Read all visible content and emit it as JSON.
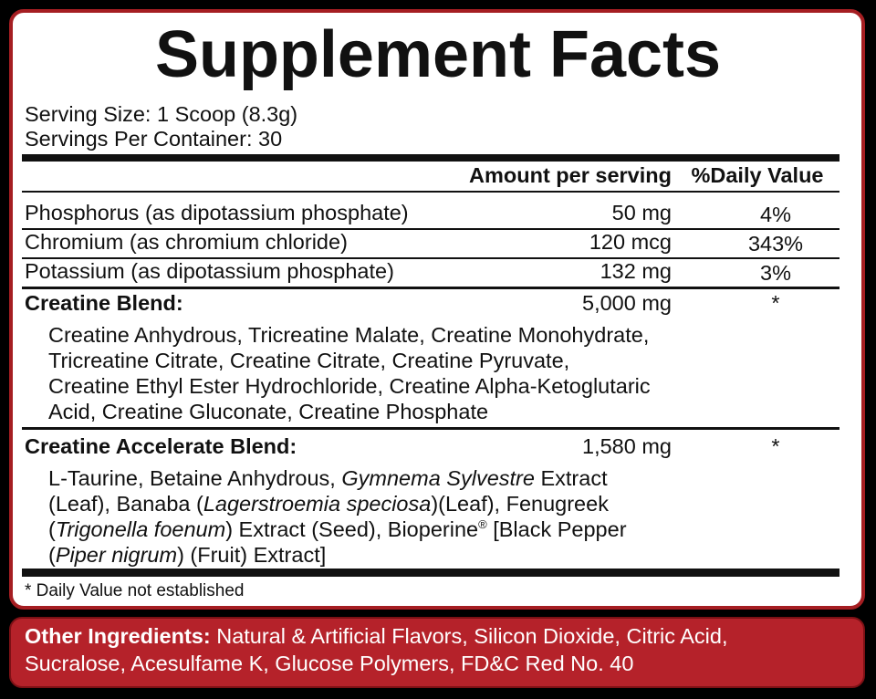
{
  "title": "Supplement Facts",
  "serving": [
    "Serving Size: 1 Scoop (8.3g)",
    "Servings Per Container: 30"
  ],
  "header": {
    "amount": "Amount per serving",
    "daily_value": "%Daily Value"
  },
  "nutrients": [
    {
      "name": "Phosphorus (as dipotassium phosphate)",
      "amount": "50 mg",
      "daily_value": "4%"
    },
    {
      "name": "Chromium (as chromium chloride)",
      "amount": "120 mcg",
      "daily_value": "343%"
    },
    {
      "name": "Potassium (as dipotassium phosphate)",
      "amount": "132 mg",
      "daily_value": "3%"
    }
  ],
  "blends": [
    {
      "name": "Creatine Blend:",
      "amount": "5,000 mg",
      "daily_value": "*",
      "lines": [
        [
          {
            "text": "Creatine Anhydrous, Tricreatine Malate, Creatine Monohydrate,"
          }
        ],
        [
          {
            "text": "Tricreatine Citrate, Creatine Citrate, Creatine Pyruvate,"
          }
        ],
        [
          {
            "text": "Creatine Ethyl Ester Hydrochloride, Creatine Alpha-Ketoglutaric"
          }
        ],
        [
          {
            "text": "Acid, Creatine Gluconate, Creatine Phosphate"
          }
        ]
      ]
    },
    {
      "name": "Creatine Accelerate Blend:",
      "amount": "1,580 mg",
      "daily_value": "*",
      "lines": [
        [
          {
            "text": "L-Taurine, Betaine Anhydrous, "
          },
          {
            "text": "Gymnema Sylvestre",
            "italic": true
          },
          {
            "text": " Extract"
          }
        ],
        [
          {
            "text": "(Leaf), Banaba ("
          },
          {
            "text": "Lagerstroemia speciosa",
            "italic": true
          },
          {
            "text": ")(Leaf), Fenugreek"
          }
        ],
        [
          {
            "text": "("
          },
          {
            "text": "Trigonella foenum",
            "italic": true
          },
          {
            "text": ") Extract (Seed), Bioperine"
          },
          {
            "text": "®",
            "superscript": true
          },
          {
            "text": " [Black Pepper"
          }
        ],
        [
          {
            "text": "("
          },
          {
            "text": "Piper nigrum",
            "italic": true
          },
          {
            "text": ") (Fruit) Extract]"
          }
        ]
      ]
    }
  ],
  "footnote": "* Daily Value not established",
  "other_ingredients": {
    "label": "Other Ingredients:",
    "lines": [
      "Natural & Artificial Flavors, Silicon Dioxide, Citric Acid,",
      "Sucralose, Acesulfame K, Glucose Polymers, FD&C Red No. 40"
    ]
  }
}
